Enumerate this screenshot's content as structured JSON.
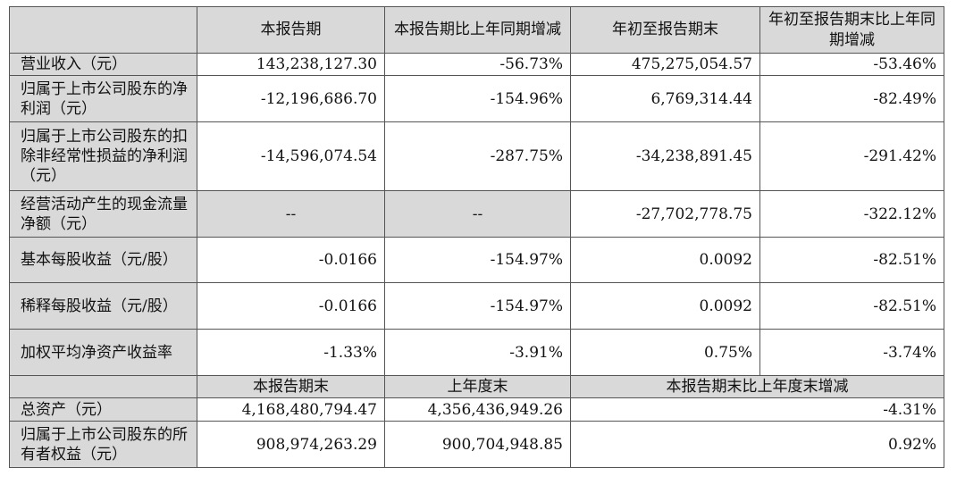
{
  "header": [
    "",
    "本报告期",
    "本报告期比上年同期增减",
    "年初至报告期末",
    "年初至报告期末比上年同期增减"
  ],
  "rows": [
    {
      "label": "营业收入（元）",
      "v": [
        "143,238,127.30",
        "-56.73%",
        "475,275,054.57",
        "-53.46%"
      ]
    },
    {
      "label": "归属于上市公司股东的净利润（元）",
      "v": [
        "-12,196,686.70",
        "-154.96%",
        "6,769,314.44",
        "-82.49%"
      ]
    },
    {
      "label": "归属于上市公司股东的扣除非经常性损益的净利润（元）",
      "v": [
        "-14,596,074.54",
        "-287.75%",
        "-34,238,891.45",
        "-291.42%"
      ]
    },
    {
      "label": "经营活动产生的现金流量净额（元）",
      "v": [
        "--",
        "--",
        "-27,702,778.75",
        "-322.12%"
      ]
    },
    {
      "label": "基本每股收益（元/股）",
      "v": [
        "-0.0166",
        "-154.97%",
        "0.0092",
        "-82.51%"
      ]
    },
    {
      "label": "稀释每股收益（元/股）",
      "v": [
        "-0.0166",
        "-154.97%",
        "0.0092",
        "-82.51%"
      ]
    },
    {
      "label": "加权平均净资产收益率",
      "v": [
        "-1.33%",
        "-3.91%",
        "0.75%",
        "-3.74%"
      ]
    }
  ],
  "header2": [
    "",
    "本报告期末",
    "上年度末",
    "本报告期末比上年度末增减"
  ],
  "rows2": [
    {
      "label": "总资产（元）",
      "v": [
        "4,168,480,794.47",
        "4,356,436,949.26",
        "-4.31%"
      ]
    },
    {
      "label": "归属于上市公司股东的所有者权益（元）",
      "v": [
        "908,974,263.29",
        "900,704,948.85",
        "0.92%"
      ]
    }
  ]
}
